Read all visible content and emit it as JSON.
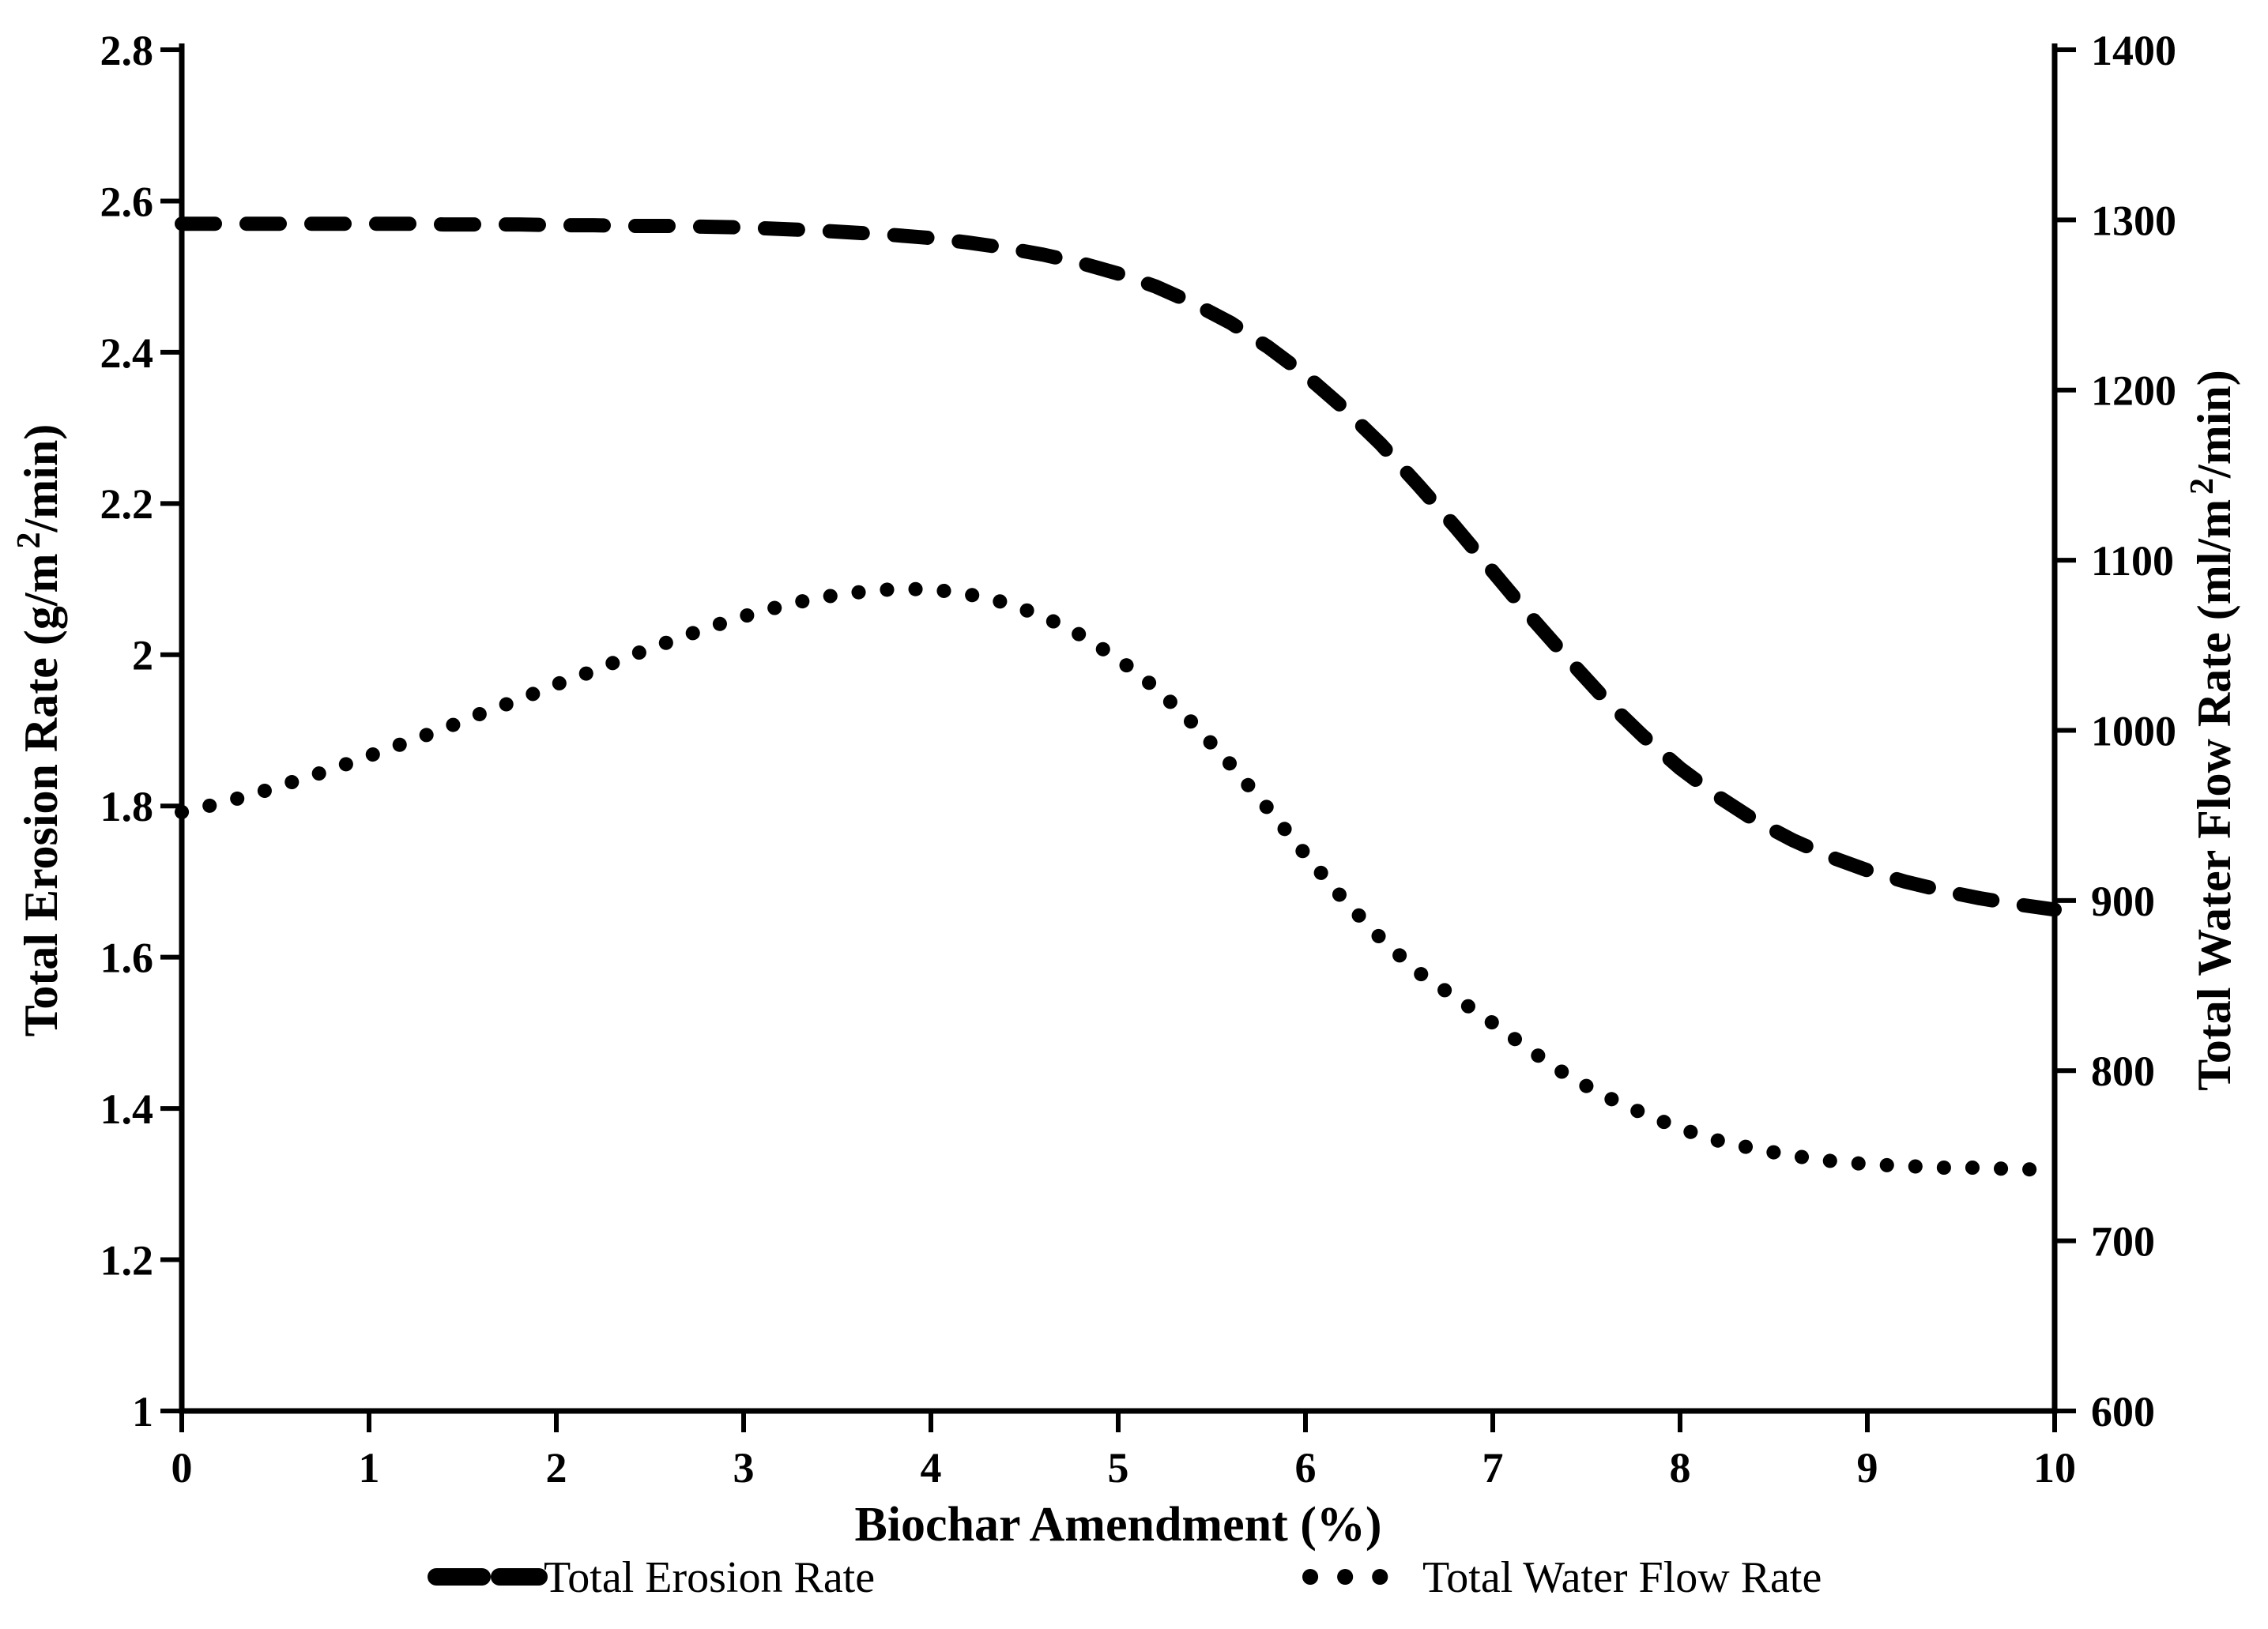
{
  "chart_data": {
    "type": "line",
    "title": "",
    "xlabel": "Biochar Amendment (%)",
    "background": "#ffffff",
    "line_color": "#000000",
    "text_color": "#000000",
    "grid": false,
    "x_axis": {
      "min": 0,
      "max": 10,
      "tick_labels": [
        "0",
        "1",
        "2",
        "3",
        "4",
        "5",
        "6",
        "7",
        "8",
        "9",
        "10"
      ]
    },
    "left_axis": {
      "label_prefix": "Total Erosion Rate (g/m",
      "label_sup": "2",
      "label_suffix": "/min)",
      "min": 1,
      "max": 2.8,
      "tick_labels": [
        "1",
        "1.2",
        "1.4",
        "1.6",
        "1.8",
        "2",
        "2.2",
        "2.4",
        "2.6",
        "2.8"
      ]
    },
    "right_axis": {
      "label_prefix": "Total Water Flow Rate (ml/m",
      "label_sup": "2",
      "label_suffix": "/min)",
      "min": 600,
      "max": 1400,
      "tick_labels": [
        "600",
        "700",
        "800",
        "900",
        "1000",
        "1100",
        "1200",
        "1300",
        "1400"
      ]
    },
    "series": [
      {
        "name": "Total Erosion Rate",
        "axis": "left",
        "style": "dashed",
        "x": [
          0,
          0.2,
          0.4,
          0.6,
          0.8,
          1,
          1.2,
          1.4,
          1.6,
          1.8,
          2,
          2.2,
          2.4,
          2.6,
          2.8,
          3,
          3.2,
          3.4,
          3.6,
          3.8,
          4,
          4.2,
          4.4,
          4.6,
          4.8,
          5,
          5.2,
          5.4,
          5.6,
          5.8,
          6,
          6.2,
          6.4,
          6.6,
          6.8,
          7,
          7.2,
          7.4,
          7.6,
          7.8,
          8,
          8.2,
          8.4,
          8.6,
          8.8,
          9,
          9.2,
          9.4,
          9.6,
          9.8,
          10
        ],
        "values": [
          2.57,
          2.57,
          2.57,
          2.57,
          2.57,
          2.57,
          2.57,
          2.569,
          2.569,
          2.569,
          2.568,
          2.568,
          2.567,
          2.567,
          2.566,
          2.565,
          2.563,
          2.561,
          2.558,
          2.555,
          2.551,
          2.545,
          2.538,
          2.529,
          2.518,
          2.504,
          2.487,
          2.465,
          2.439,
          2.407,
          2.37,
          2.327,
          2.279,
          2.225,
          2.169,
          2.11,
          2.051,
          1.995,
          1.941,
          1.893,
          1.85,
          1.813,
          1.781,
          1.755,
          1.733,
          1.715,
          1.7,
          1.688,
          1.678,
          1.67,
          1.663
        ]
      },
      {
        "name": "Total Water Flow Rate",
        "axis": "right",
        "style": "dotted",
        "x": [
          0,
          0.2,
          0.4,
          0.6,
          0.8,
          1,
          1.2,
          1.4,
          1.6,
          1.8,
          2,
          2.2,
          2.4,
          2.6,
          2.8,
          3,
          3.2,
          3.4,
          3.6,
          3.8,
          4,
          4.2,
          4.4,
          4.6,
          4.8,
          5,
          5.2,
          5.4,
          5.6,
          5.8,
          6,
          6.2,
          6.4,
          6.6,
          6.8,
          7,
          7.2,
          7.4,
          7.6,
          7.8,
          8,
          8.2,
          8.4,
          8.6,
          8.8,
          9,
          9.2,
          9.4,
          9.6,
          9.8,
          10
        ],
        "values": [
          952,
          957,
          963,
          970,
          977,
          985,
          993,
          1001,
          1010,
          1018,
          1027,
          1035,
          1044,
          1052,
          1060,
          1067,
          1073,
          1078,
          1081,
          1083,
          1083,
          1080,
          1075,
          1067,
          1056,
          1042,
          1025,
          1004,
          980,
          954,
          927,
          901,
          878,
          858,
          843,
          828,
          812,
          797,
          785,
          775,
          766,
          759,
          754,
          750,
          747,
          745,
          744,
          743,
          743,
          742,
          742
        ]
      }
    ],
    "legend": {
      "position": "bottom",
      "entries": [
        "Total Erosion Rate",
        "Total Water Flow Rate"
      ]
    }
  }
}
